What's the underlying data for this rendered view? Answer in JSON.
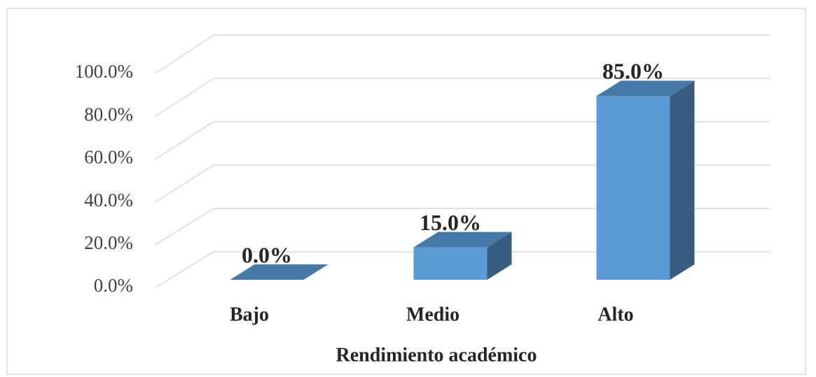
{
  "chart_data": {
    "type": "bar3d",
    "categories": [
      "Bajo",
      "Medio",
      "Alto"
    ],
    "values": [
      0,
      15,
      85
    ],
    "value_labels": [
      "0.0%",
      "15.0%",
      "85.0%"
    ],
    "color": "#5b9bd5",
    "ylim": [
      0,
      100
    ],
    "yticks": [
      {
        "value": 0,
        "label": "0.0%"
      },
      {
        "value": 20,
        "label": "20.0%"
      },
      {
        "value": 40,
        "label": "40.0%"
      },
      {
        "value": 60,
        "label": "60.0%"
      },
      {
        "value": 80,
        "label": "80.0%"
      },
      {
        "value": 100,
        "label": "100.0%"
      }
    ],
    "xlabel": "Rendimiento académico",
    "grid": true
  }
}
